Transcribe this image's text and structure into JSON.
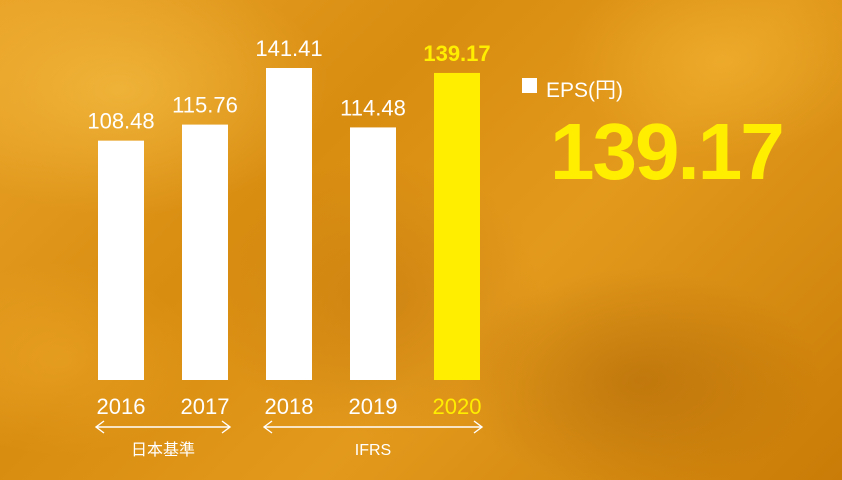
{
  "chart_data": {
    "type": "bar",
    "categories": [
      "2016",
      "2017",
      "2018",
      "2019",
      "2020"
    ],
    "values": [
      108.48,
      115.76,
      141.41,
      114.48,
      139.17
    ],
    "value_labels": [
      "108.48",
      "115.76",
      "141.41",
      "114.48",
      "139.17"
    ],
    "highlight_index": 4,
    "ylim": [
      0,
      141.41
    ],
    "legend": "EPS(円)",
    "headline_value": "139.17",
    "standards": [
      {
        "label": "日本基準",
        "from": "2016",
        "to": "2017"
      },
      {
        "label": "IFRS",
        "from": "2018",
        "to": "2020"
      }
    ]
  },
  "colors": {
    "bar": "#ffffff",
    "highlight": "#ffee00",
    "text": "#ffffff"
  }
}
